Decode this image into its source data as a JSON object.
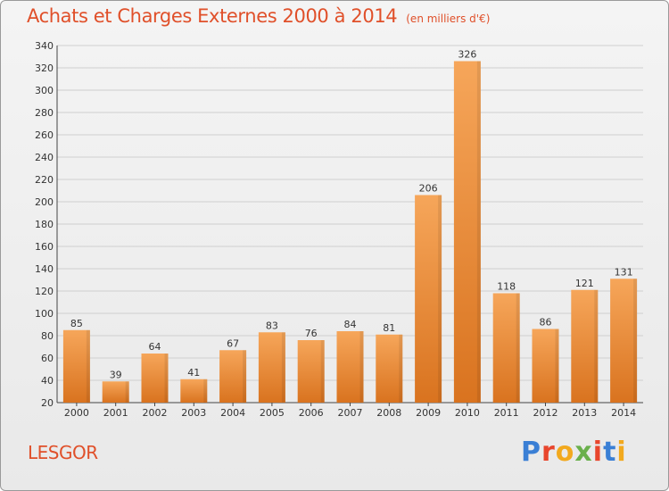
{
  "header": {
    "title": "Achats et Charges Externes 2000 à 2014",
    "subtitle": "(en milliers d'€)"
  },
  "footer": {
    "commune": "LESGOR",
    "logo_text": "Proxiti",
    "logo_colors": [
      "#3a7fd5",
      "#e8452c",
      "#f2a91e",
      "#6ab04c",
      "#e8452c",
      "#3a7fd5",
      "#f2a91e"
    ]
  },
  "chart_data": {
    "type": "bar",
    "title": "Achats et Charges Externes 2000 à 2014",
    "categories": [
      "2000",
      "2001",
      "2002",
      "2003",
      "2004",
      "2005",
      "2006",
      "2007",
      "2008",
      "2009",
      "2010",
      "2011",
      "2012",
      "2013",
      "2014"
    ],
    "values": [
      85,
      39,
      64,
      41,
      67,
      83,
      76,
      84,
      81,
      206,
      326,
      118,
      86,
      121,
      131
    ],
    "ylim": [
      20,
      340
    ],
    "yticks": [
      20,
      40,
      60,
      80,
      100,
      120,
      140,
      160,
      180,
      200,
      220,
      240,
      260,
      280,
      300,
      320,
      340
    ],
    "grid": true,
    "bar_color_top": "#f6a65a",
    "bar_color_bottom": "#d9731f",
    "xlabel": "",
    "ylabel": ""
  }
}
